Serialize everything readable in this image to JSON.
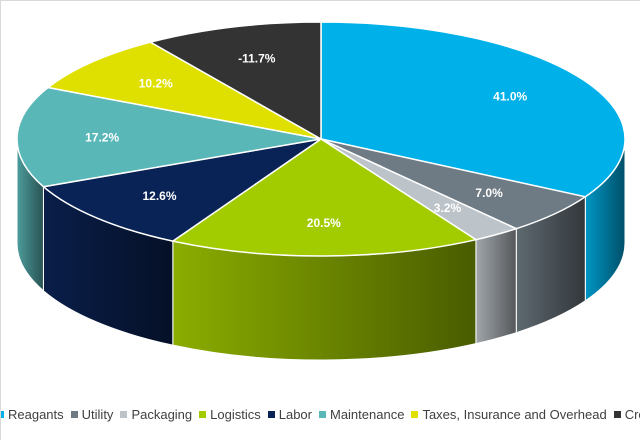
{
  "chart_data": {
    "type": "pie",
    "title": "",
    "style": "3d",
    "legend": "bottom",
    "slices": [
      {
        "name": "Reagants",
        "value": 41.0,
        "label": "41.0%",
        "color": "#00b0e8"
      },
      {
        "name": "Utility",
        "value": 7.0,
        "label": "7.0%",
        "color": "#6f7b84"
      },
      {
        "name": "Packaging",
        "value": 3.2,
        "label": "3.2%",
        "color": "#bcc3c9"
      },
      {
        "name": "Logistics",
        "value": 20.5,
        "label": "20.5%",
        "color": "#a3cc00"
      },
      {
        "name": "Labor",
        "value": 12.6,
        "label": "12.6%",
        "color": "#0a2356"
      },
      {
        "name": "Maintenance",
        "value": 17.2,
        "label": "17.2%",
        "color": "#5ab7b8"
      },
      {
        "name": "Taxes, Insurance and Overhead",
        "value": 10.2,
        "label": "10.2%",
        "color": "#dfe000"
      },
      {
        "name": "Credits",
        "value": -11.7,
        "label": "-11.7%",
        "color": "#333333"
      }
    ]
  }
}
